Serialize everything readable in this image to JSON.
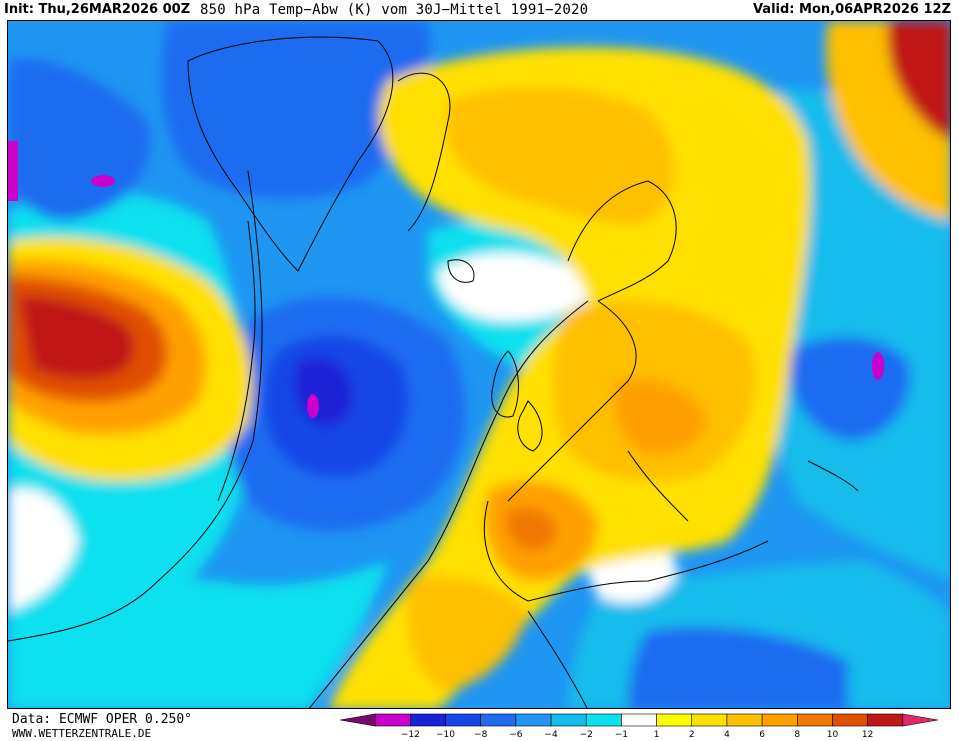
{
  "header": {
    "init": "Init: Thu,26MAR2026 00Z",
    "title": "850 hPa Temp−Abw (K) vom 30J−Mittel 1991−2020",
    "valid": "Valid: Mon,06APR2026 12Z"
  },
  "footer": {
    "source": "Data: ECMWF OPER 0.250°",
    "site": "WWW.WETTERZENTRALE.DE"
  },
  "legend": {
    "bins": [
      {
        "color": "#7a0a6a"
      },
      {
        "color": "#cc00cc"
      },
      {
        "color": "#1a22d6"
      },
      {
        "color": "#1846e6"
      },
      {
        "color": "#1e6cf0"
      },
      {
        "color": "#1e96f2"
      },
      {
        "color": "#12bcec"
      },
      {
        "color": "#0ce0ee"
      },
      {
        "color": "#ffffff"
      },
      {
        "color": "#ffff00"
      },
      {
        "color": "#ffe000"
      },
      {
        "color": "#ffc000"
      },
      {
        "color": "#ffa000"
      },
      {
        "color": "#f07800"
      },
      {
        "color": "#e05000"
      },
      {
        "color": "#c01818"
      },
      {
        "color": "#e0286a"
      }
    ],
    "ticks": [
      "−12",
      "−10",
      "−8",
      "−6",
      "−4",
      "−2",
      "−1",
      "1",
      "2",
      "4",
      "6",
      "8",
      "10",
      "12"
    ]
  },
  "colors": {
    "deep_purple": "#7a0a6a",
    "magenta": "#cc00cc",
    "blue_dark": "#1a22d6",
    "blue": "#1e6cf0",
    "blue_light": "#1e96f2",
    "cyan": "#0ce0ee",
    "white": "#ffffff",
    "yellow": "#ffe000",
    "orange": "#ffa000",
    "dark_orange": "#e05000",
    "red": "#c01818"
  }
}
